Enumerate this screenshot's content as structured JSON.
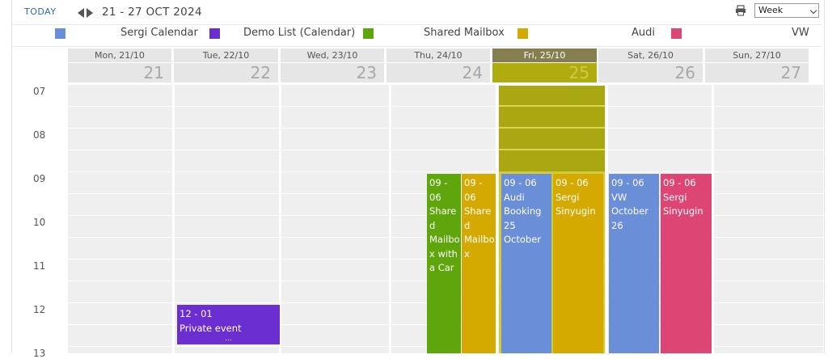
{
  "toolbar": {
    "today_label": "TODAY",
    "date_range": "21 - 27 OCT 2024",
    "view_select": "Week"
  },
  "legend": [
    {
      "label": "Sergi Calendar",
      "color": "#6a8ed8"
    },
    {
      "label": "Demo List (Calendar)",
      "color": "#6b2ed0"
    },
    {
      "label": "Shared Mailbox",
      "color": "#5fa60c"
    },
    {
      "label": "Audi",
      "color": "#d4a900"
    },
    {
      "label": "VW",
      "color": "#dd4575"
    }
  ],
  "days": [
    {
      "header": "Mon, 21/10",
      "number": "21"
    },
    {
      "header": "Tue, 22/10",
      "number": "22"
    },
    {
      "header": "Wed, 23/10",
      "number": "23"
    },
    {
      "header": "Thu, 24/10",
      "number": "24"
    },
    {
      "header": "Fri, 25/10",
      "number": "25",
      "today": true
    },
    {
      "header": "Sat, 26/10",
      "number": "26"
    },
    {
      "header": "Sun, 27/10",
      "number": "27"
    }
  ],
  "hours": [
    "07",
    "08",
    "09",
    "10",
    "11",
    "12",
    "13"
  ],
  "events": [
    {
      "time": "09 - 06",
      "title": "Shared Mailbox with a Car",
      "color": "#5fa60c"
    },
    {
      "time": "09 - 06",
      "title": "Shared Mailbox",
      "color": "#d4a900"
    },
    {
      "time": "09 - 06",
      "title": "Audi Booking 25 October",
      "color": "#6a8ed8"
    },
    {
      "time": "09 - 06",
      "title": "Sergi Sinyugin",
      "color": "#d4a900"
    },
    {
      "time": "09 - 06",
      "title": "VW October 26",
      "color": "#6a8ed8"
    },
    {
      "time": "09 - 06",
      "title": "Sergi Sinyugin",
      "color": "#dd4575"
    },
    {
      "time": "12 - 01",
      "title": "Private event",
      "more": "...",
      "color": "#6b2ed0"
    }
  ],
  "icons": {
    "print": "printer-icon",
    "prev": "chevron-left-icon",
    "next": "chevron-right-icon"
  }
}
